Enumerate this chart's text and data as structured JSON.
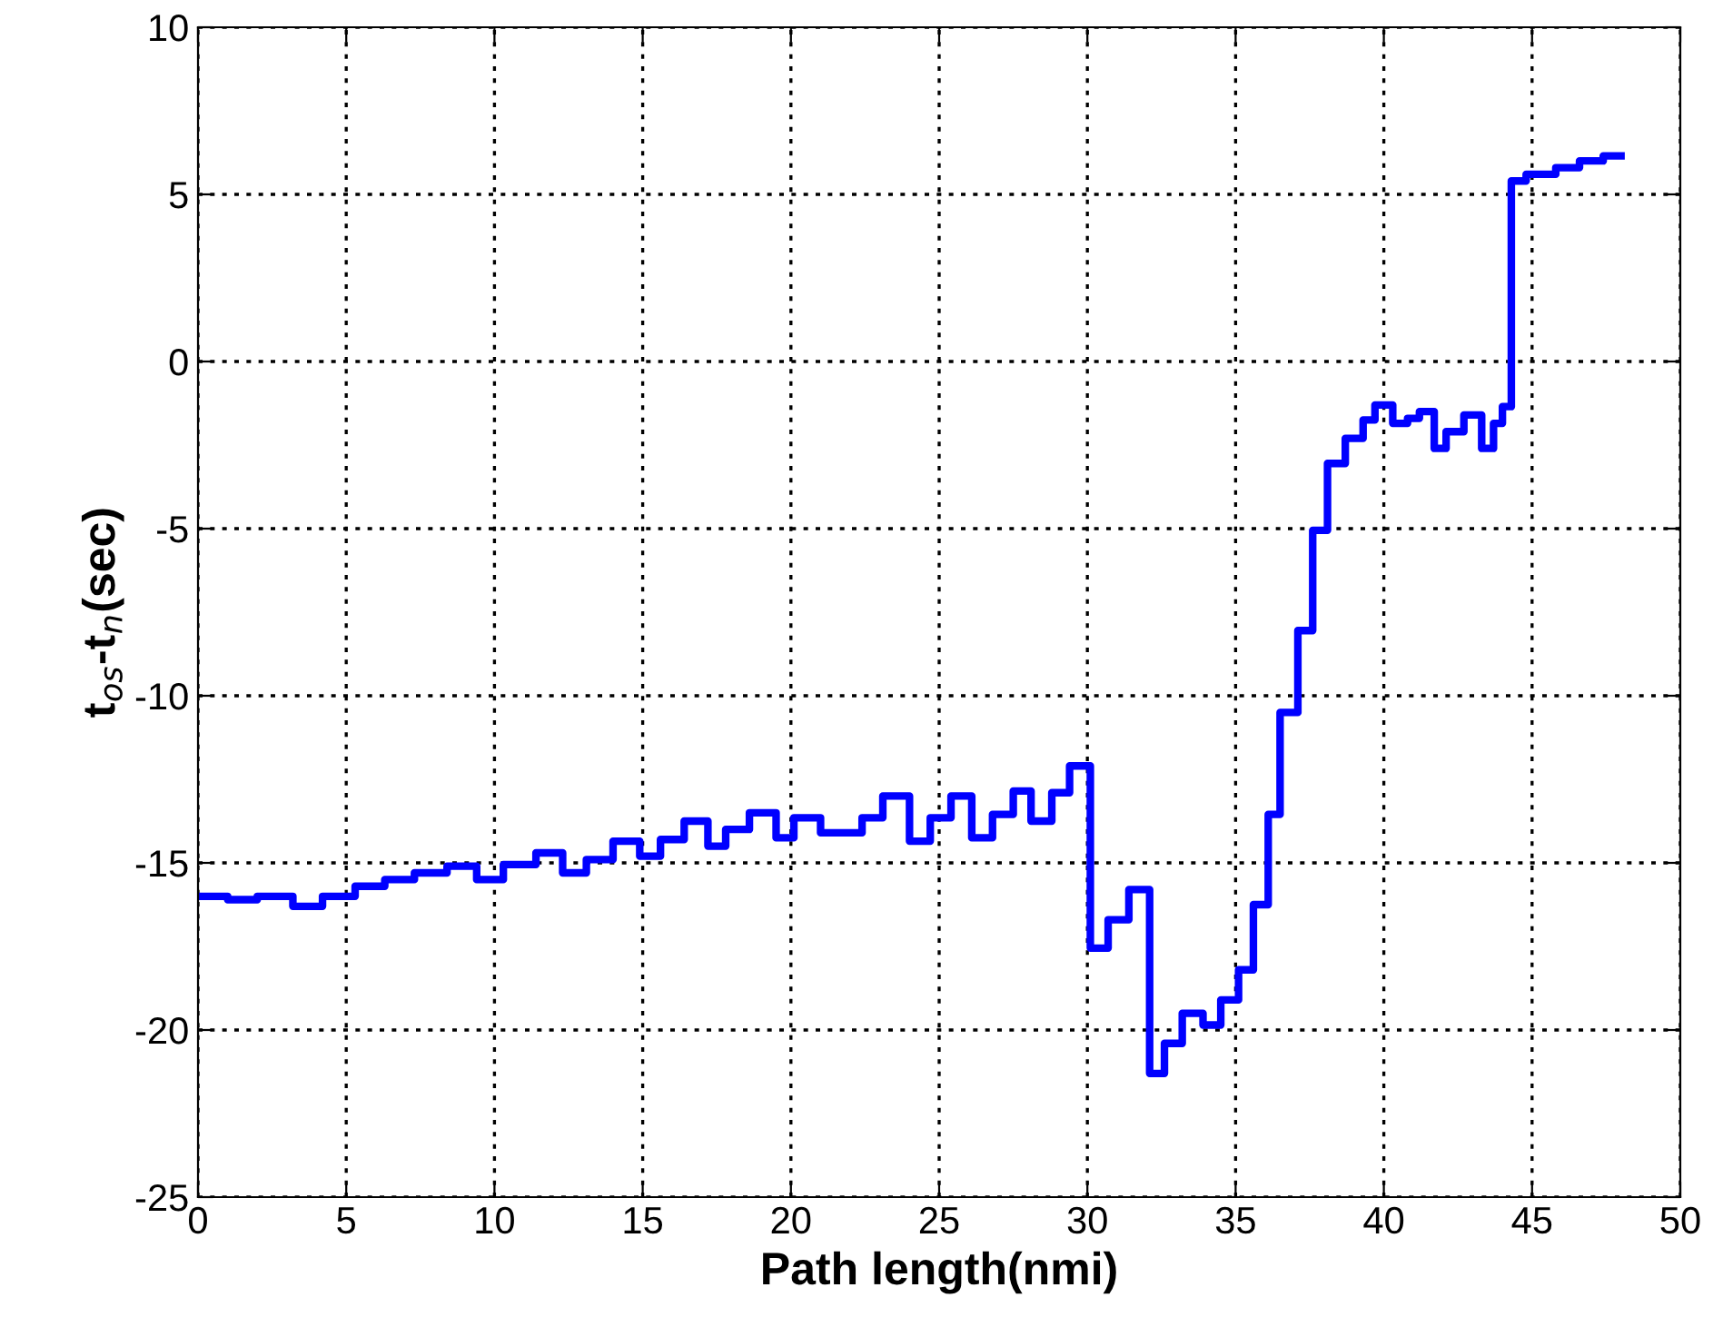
{
  "chart_data": {
    "type": "step",
    "xlabel": "Path length(nmi)",
    "ylabel": "t$_{os}$-t$_{n}$(sec)",
    "xlim": [
      0,
      50
    ],
    "ylim": [
      -25,
      10
    ],
    "xticks": [
      0,
      5,
      10,
      15,
      20,
      25,
      30,
      35,
      40,
      45,
      50
    ],
    "yticks": [
      -25,
      -20,
      -15,
      -10,
      -5,
      0,
      5,
      10
    ],
    "grid": true,
    "legend": false,
    "marker": "none",
    "line_style": "solid",
    "series": [
      {
        "color": "#0000ff",
        "x": [
          0,
          1.0,
          2.0,
          3.2,
          4.2,
          5.3,
          6.3,
          7.3,
          8.4,
          9.4,
          10.3,
          11.4,
          12.3,
          13.1,
          14.0,
          14.9,
          15.6,
          16.4,
          17.2,
          17.8,
          18.6,
          19.5,
          20.1,
          21.0,
          22.4,
          23.1,
          24.0,
          24.7,
          25.4,
          26.1,
          26.8,
          27.5,
          28.1,
          28.8,
          29.4,
          30.1,
          30.7,
          31.4,
          32.1,
          32.6,
          33.2,
          33.9,
          34.5,
          35.1,
          35.6,
          36.1,
          36.5,
          37.1,
          37.6,
          38.1,
          38.7,
          39.3,
          39.7,
          40.3,
          40.8,
          41.2,
          41.7,
          42.1,
          42.7,
          43.3,
          43.7,
          44.0,
          44.3,
          44.8,
          45.8,
          46.6,
          47.4,
          48.0
        ],
        "values": [
          -16.0,
          -16.1,
          -16.0,
          -16.3,
          -16.0,
          -15.7,
          -15.5,
          -15.3,
          -15.1,
          -15.5,
          -15.05,
          -14.7,
          -15.3,
          -14.9,
          -14.35,
          -14.8,
          -14.3,
          -13.75,
          -14.5,
          -14.0,
          -13.5,
          -14.25,
          -13.65,
          -14.1,
          -13.65,
          -13.0,
          -14.35,
          -13.65,
          -13.0,
          -14.25,
          -13.55,
          -12.85,
          -13.75,
          -12.9,
          -12.1,
          -17.55,
          -16.7,
          -15.8,
          -21.3,
          -20.4,
          -19.5,
          -19.85,
          -19.1,
          -18.2,
          -16.25,
          -13.55,
          -10.5,
          -8.05,
          -5.05,
          -3.05,
          -2.3,
          -1.75,
          -1.3,
          -1.85,
          -1.7,
          -1.5,
          -2.6,
          -2.1,
          -1.6,
          -2.6,
          -1.85,
          -1.35,
          5.4,
          5.6,
          5.8,
          6.0,
          6.15,
          6.15
        ]
      }
    ]
  }
}
